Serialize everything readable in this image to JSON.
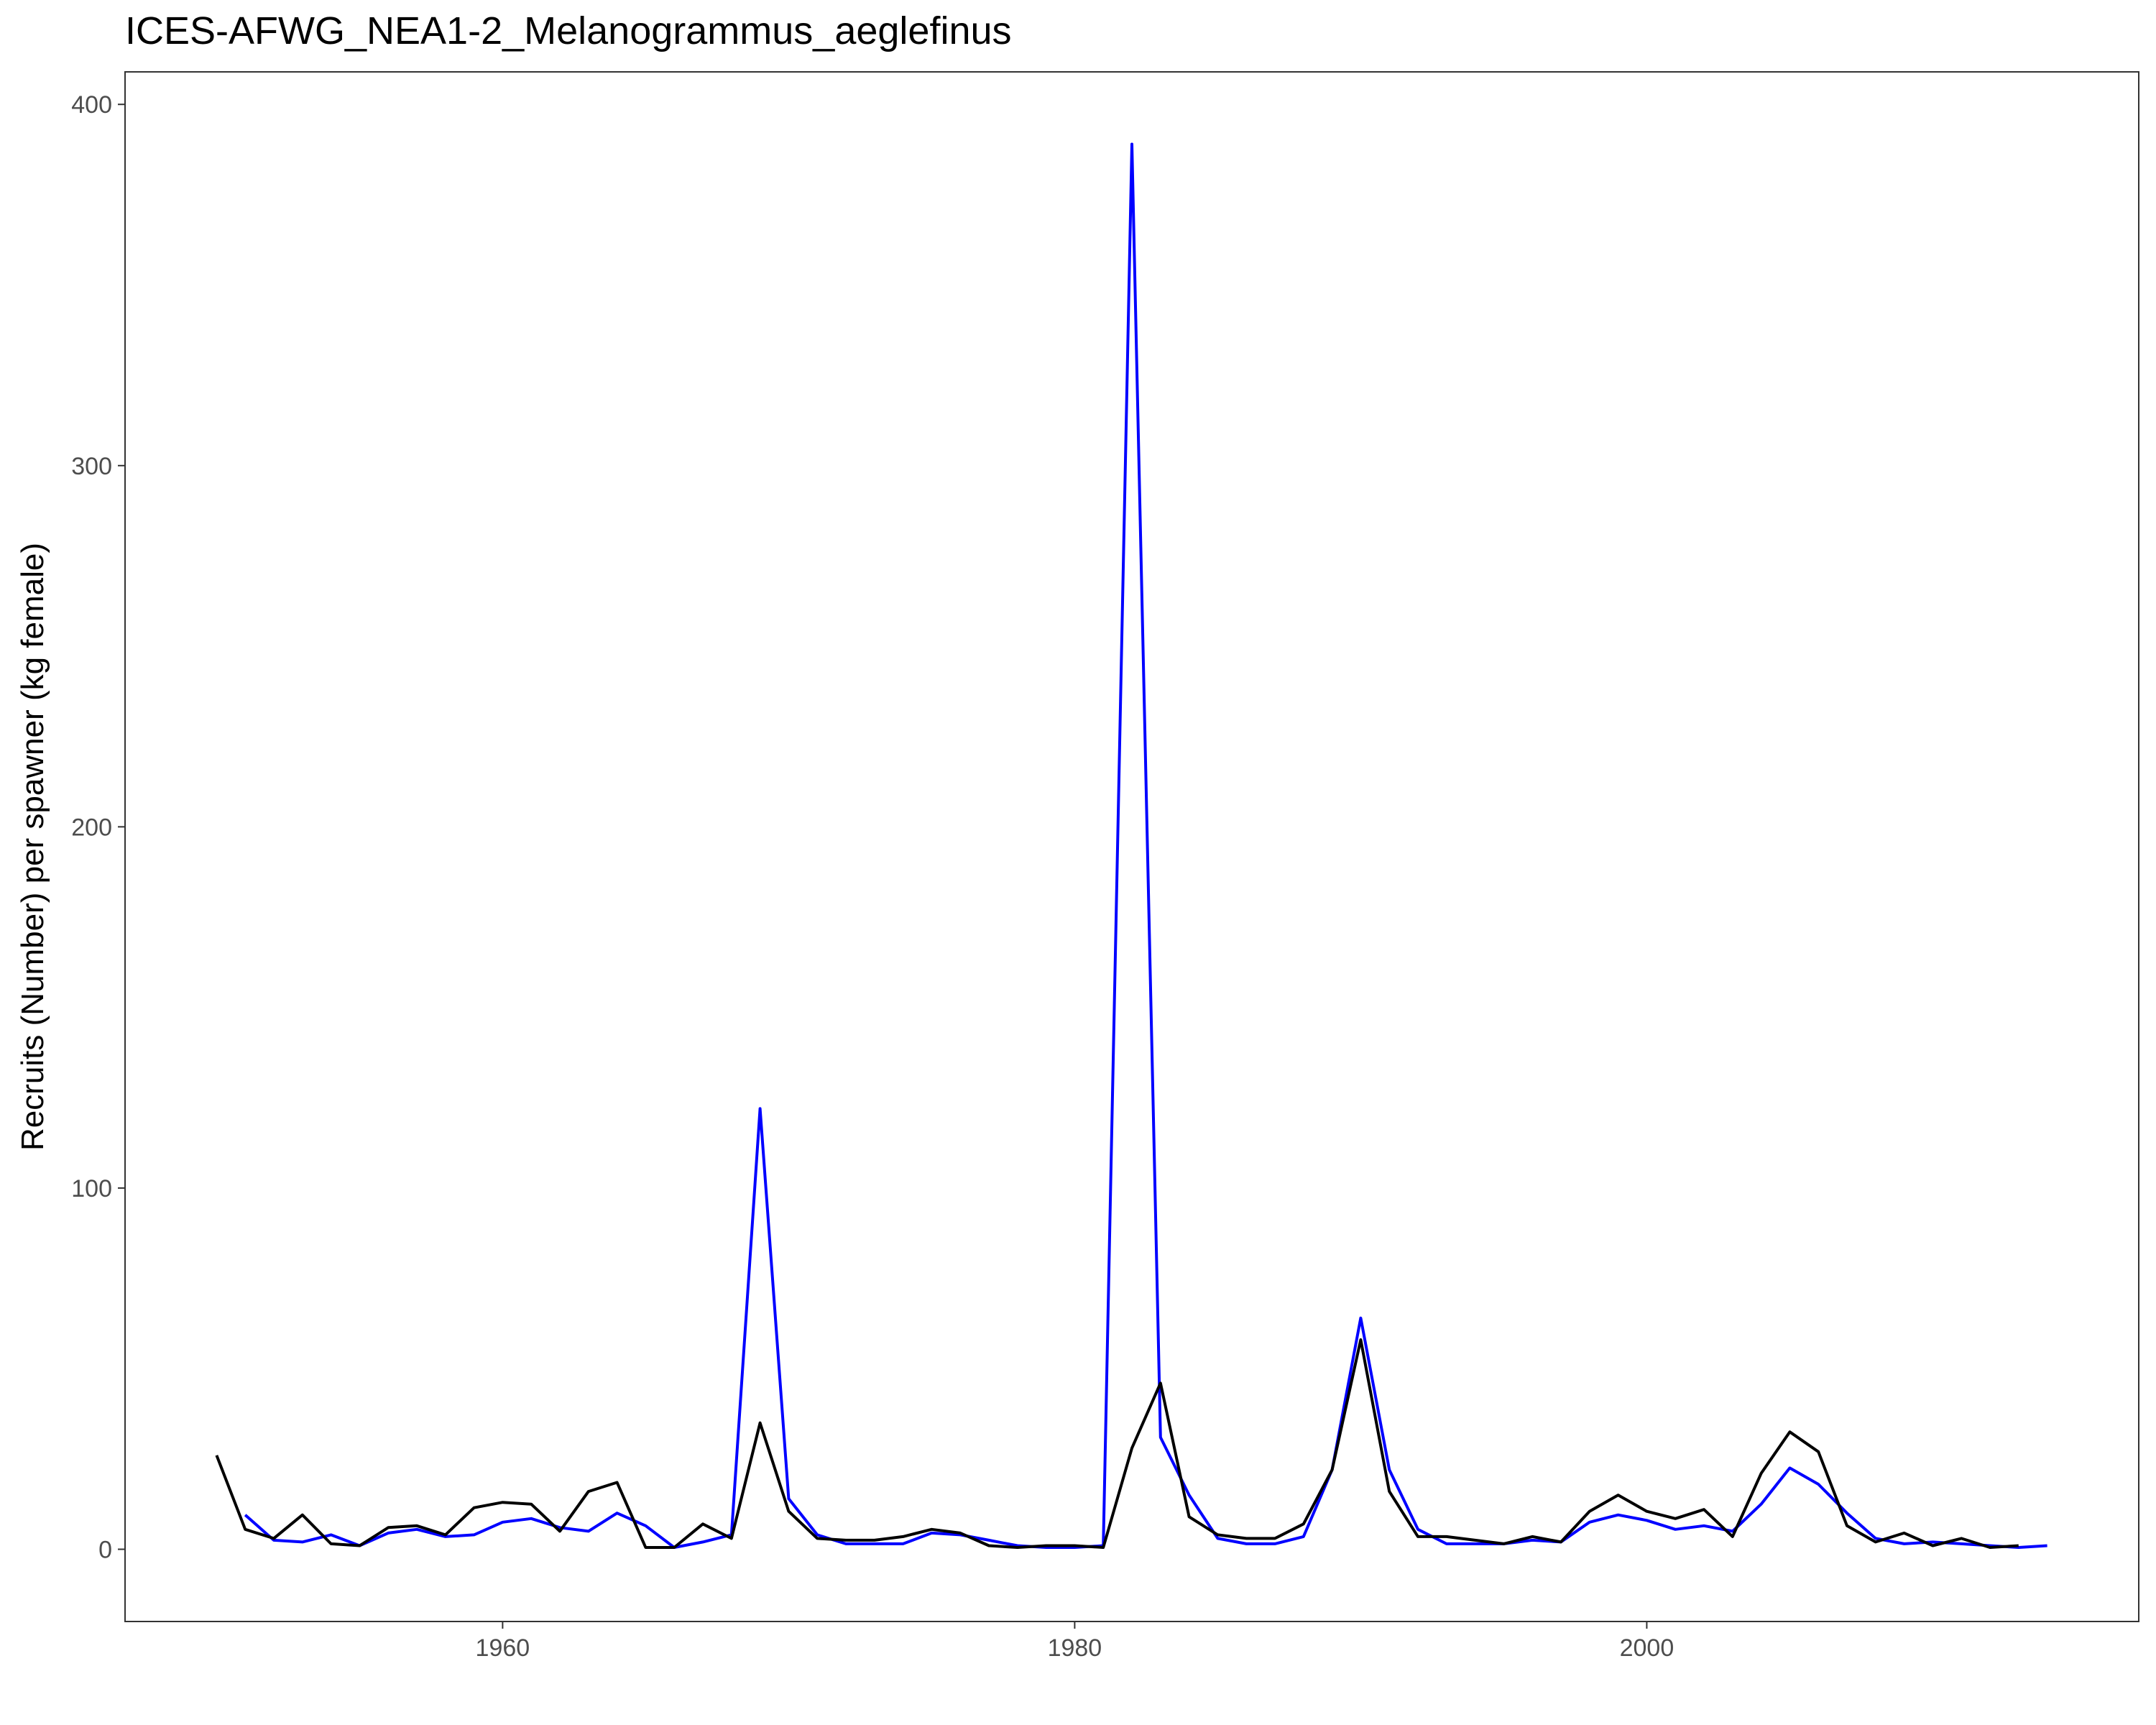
{
  "chart_data": {
    "type": "line",
    "title": "ICES-AFWG_NEA1-2_Melanogrammus_aeglefinus",
    "xlabel": "",
    "ylabel": "Recruits (Number) per spawner (kg female)",
    "xlim": [
      1946.8,
      2017.2
    ],
    "ylim": [
      -20,
      409
    ],
    "x_ticks": [
      1960,
      1980,
      2000
    ],
    "y_ticks": [
      0,
      100,
      200,
      300,
      400
    ],
    "grid": false,
    "legend": "none",
    "series": [
      {
        "color": "#0000ff",
        "x": [
          1951,
          1952,
          1953,
          1954,
          1955,
          1956,
          1957,
          1958,
          1959,
          1960,
          1961,
          1962,
          1963,
          1964,
          1965,
          1966,
          1967,
          1968,
          1969,
          1970,
          1971,
          1972,
          1973,
          1974,
          1975,
          1976,
          1977,
          1978,
          1979,
          1980,
          1981,
          1982,
          1983,
          1984,
          1985,
          1986,
          1987,
          1988,
          1989,
          1990,
          1991,
          1992,
          1993,
          1994,
          1995,
          1996,
          1997,
          1998,
          1999,
          2000,
          2001,
          2002,
          2003,
          2004,
          2005,
          2006,
          2007,
          2008,
          2009,
          2010,
          2011,
          2012,
          2013,
          2014
        ],
        "y": [
          9.5,
          2.5,
          2,
          4,
          1,
          4.5,
          5.5,
          3.5,
          4,
          7.5,
          8.5,
          6,
          5,
          10,
          6.5,
          0.5,
          2,
          4,
          122,
          14,
          4,
          1.5,
          1.5,
          1.5,
          4.5,
          4,
          2.5,
          1,
          0.5,
          0.5,
          1,
          389,
          31,
          15,
          3,
          1.5,
          1.5,
          3.5,
          22,
          64,
          22,
          5.5,
          1.5,
          1.5,
          1.5,
          2.5,
          2,
          7.5,
          9.5,
          8,
          5.5,
          6.5,
          5,
          12.5,
          22.5,
          18,
          10,
          3,
          1.5,
          2,
          1.5,
          1,
          0.5,
          1
        ]
      },
      {
        "color": "#000000",
        "x": [
          1950,
          1951,
          1952,
          1953,
          1954,
          1955,
          1956,
          1957,
          1958,
          1959,
          1960,
          1961,
          1962,
          1963,
          1964,
          1965,
          1966,
          1967,
          1968,
          1969,
          1970,
          1971,
          1972,
          1973,
          1974,
          1975,
          1976,
          1977,
          1978,
          1979,
          1980,
          1981,
          1982,
          1983,
          1984,
          1985,
          1986,
          1987,
          1988,
          1989,
          1990,
          1991,
          1992,
          1993,
          1994,
          1995,
          1996,
          1997,
          1998,
          1999,
          2000,
          2001,
          2002,
          2003,
          2004,
          2005,
          2006,
          2007,
          2008,
          2009,
          2010,
          2011,
          2012,
          2013
        ],
        "y": [
          26,
          5.5,
          3,
          9.5,
          1.5,
          1,
          6,
          6.5,
          4,
          11.5,
          13,
          12.5,
          5,
          16,
          18.5,
          0.5,
          0.5,
          7,
          3,
          35,
          10.5,
          3,
          2.5,
          2.5,
          3.5,
          5.5,
          4.5,
          1,
          0.5,
          1,
          1,
          0.5,
          28,
          46,
          9,
          4,
          3,
          3,
          7,
          22,
          58,
          16,
          3.5,
          3.5,
          2.5,
          1.5,
          3.5,
          2,
          10.5,
          15,
          10.5,
          8.5,
          11,
          3.5,
          21,
          32.5,
          27,
          6.5,
          2,
          4.5,
          1,
          3,
          0.5,
          1
        ]
      }
    ]
  }
}
